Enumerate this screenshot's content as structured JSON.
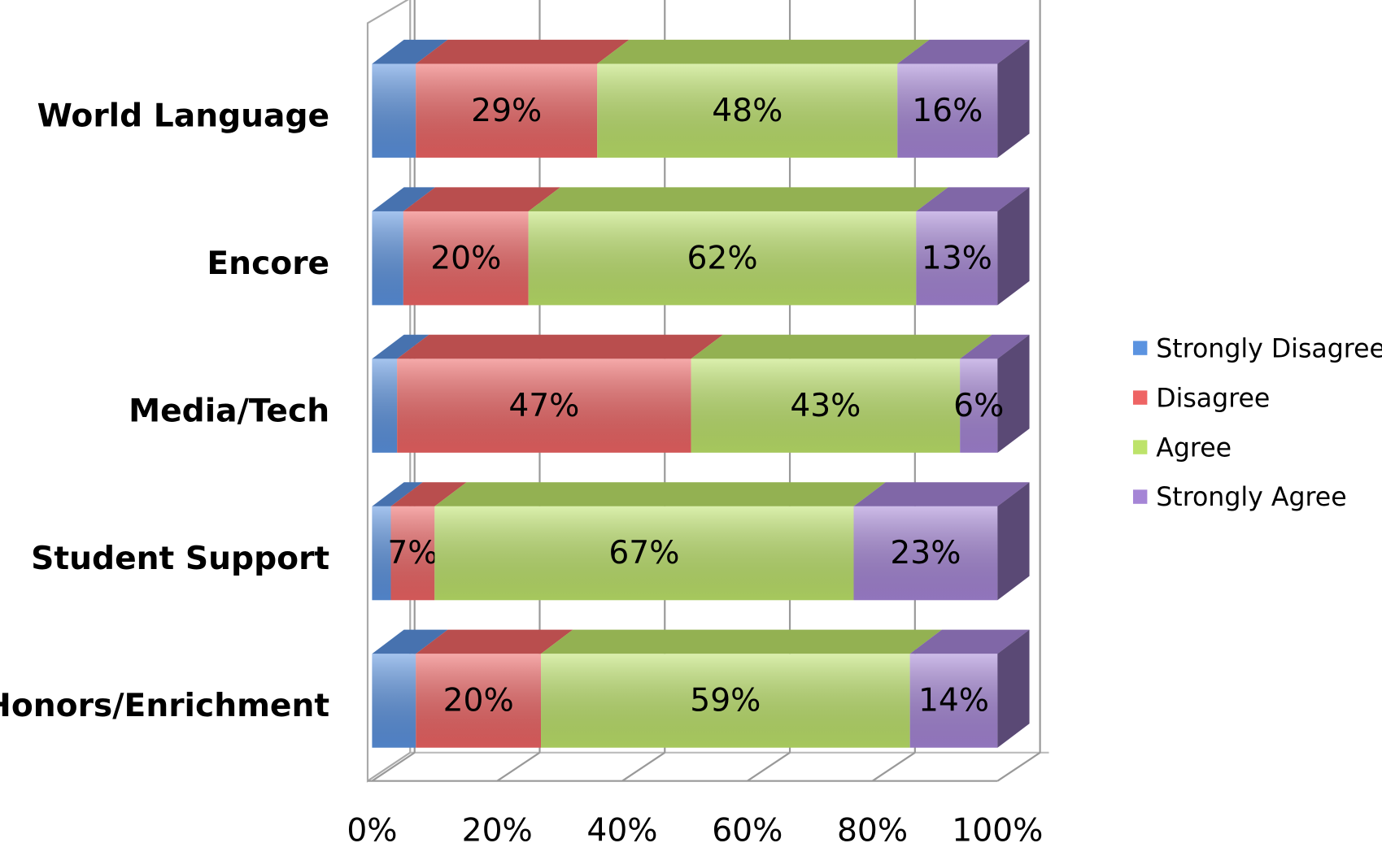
{
  "chart_data": {
    "type": "bar",
    "orientation": "horizontal",
    "stacked": true,
    "three_d": true,
    "categories": [
      "World Language",
      "Encore",
      "Media/Tech",
      "Student Support",
      "Honors/Enrichment"
    ],
    "series": [
      {
        "name": "Strongly Disagree",
        "color": "#5b93e0",
        "values": [
          7,
          5,
          4,
          3,
          7
        ]
      },
      {
        "name": "Disagree",
        "color": "#ee6464",
        "values": [
          29,
          20,
          47,
          7,
          20
        ],
        "value_labels": [
          "29%",
          "20%",
          "47%",
          "7%",
          "20%"
        ]
      },
      {
        "name": "Agree",
        "color": "#bde36a",
        "values": [
          48,
          62,
          43,
          67,
          59
        ],
        "value_labels": [
          "48%",
          "62%",
          "43%",
          "67%",
          "59%"
        ]
      },
      {
        "name": "Strongly Agree",
        "color": "#a585d6",
        "values": [
          16,
          13,
          6,
          23,
          14
        ],
        "value_labels": [
          "16%",
          "13%",
          "6%",
          "23%",
          "14%"
        ]
      }
    ],
    "xlim": [
      0,
      100
    ],
    "xticks": [
      {
        "value": 0,
        "label": "0%"
      },
      {
        "value": 20,
        "label": "20%"
      },
      {
        "value": 40,
        "label": "40%"
      },
      {
        "value": 60,
        "label": "60%"
      },
      {
        "value": 80,
        "label": "80%"
      },
      {
        "value": 100,
        "label": "100%"
      }
    ],
    "grid": true,
    "legend": "right"
  }
}
